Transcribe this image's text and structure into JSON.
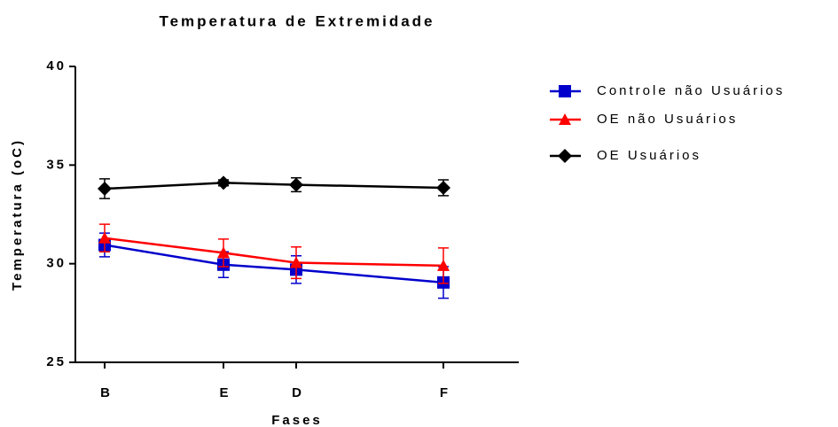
{
  "chart_data": {
    "type": "line",
    "title": "Temperatura de Extremidade",
    "xlabel": "Fases",
    "ylabel": "Temperatura (oC)",
    "categories": [
      "B",
      "E",
      "D",
      "F"
    ],
    "ylim": [
      25,
      40
    ],
    "yticks": [
      25,
      30,
      35,
      40
    ],
    "legend": "upper right",
    "series": [
      {
        "name": "Controle não Usuários",
        "color": "#0000cc",
        "marker": "square",
        "values": [
          30.95,
          29.95,
          29.7,
          29.05
        ],
        "errors": [
          0.6,
          0.65,
          0.7,
          0.8
        ]
      },
      {
        "name": "OE não Usuários",
        "color": "#ff0000",
        "marker": "triangle",
        "values": [
          31.3,
          30.55,
          30.05,
          29.9
        ],
        "errors": [
          0.7,
          0.7,
          0.8,
          0.9
        ]
      },
      {
        "name": "OE Usuários",
        "color": "#000000",
        "marker": "diamond",
        "values": [
          33.8,
          34.1,
          34.0,
          33.85
        ],
        "errors": [
          0.5,
          0.15,
          0.35,
          0.4
        ]
      }
    ]
  }
}
